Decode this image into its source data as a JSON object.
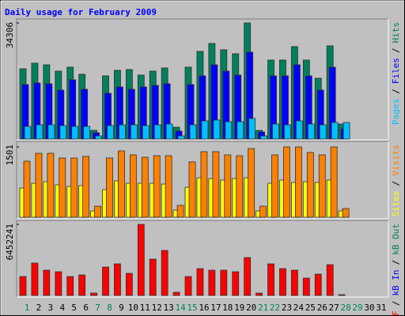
{
  "title": "Daily usage for February 2009",
  "legend_separator": "/",
  "chart_data": [
    {
      "type": "bar",
      "ylim": [
        0,
        34306
      ],
      "yticks": [
        34306
      ],
      "series": [
        {
          "name": "Pages",
          "color": "#00c0ff",
          "values": [
            3734,
            4201,
            4201,
            3967,
            3734,
            3734,
            933,
            3967,
            4201,
            4201,
            3967,
            4201,
            4434,
            933,
            4201,
            5368,
            5601,
            5135,
            5135,
            6068,
            933,
            4434,
            4201,
            5368,
            4434,
            4201,
            4901,
            4901,
            null,
            null,
            null
          ]
        },
        {
          "name": "Files",
          "color": "#0000ff",
          "values": [
            16103,
            16570,
            16336,
            14469,
            17503,
            14703,
            1867,
            13536,
            15403,
            14703,
            15403,
            15870,
            16336,
            2334,
            16103,
            18670,
            21937,
            20070,
            18903,
            25671,
            2100,
            18670,
            18670,
            21937,
            18670,
            14469,
            21237,
            3034,
            null,
            null,
            null
          ]
        },
        {
          "name": "Hits",
          "color": "#00805c",
          "values": [
            20770,
            22404,
            21937,
            20070,
            21237,
            19137,
            2567,
            18670,
            20304,
            20537,
            18903,
            20070,
            21004,
            3501,
            21237,
            25905,
            28238,
            26371,
            25204,
            34306,
            2567,
            23337,
            23337,
            27305,
            23337,
            17970,
            27538,
            4434,
            null,
            null,
            null
          ]
        }
      ]
    },
    {
      "type": "bar",
      "ylim": [
        0,
        1501
      ],
      "yticks": [
        1501
      ],
      "series": [
        {
          "name": "Sites",
          "color": "#ffff00",
          "values": [
            624,
            725,
            759,
            691,
            658,
            675,
            135,
            590,
            776,
            725,
            725,
            725,
            708,
            152,
            641,
            843,
            826,
            793,
            826,
            843,
            135,
            725,
            793,
            742,
            759,
            742,
            793,
            135,
            null,
            null,
            null
          ]
        },
        {
          "name": "Visits",
          "color": "#ff8000",
          "values": [
            1197,
            1366,
            1366,
            1265,
            1265,
            1299,
            236,
            1265,
            1417,
            1332,
            1282,
            1315,
            1315,
            253,
            1181,
            1400,
            1400,
            1332,
            1315,
            1467,
            236,
            1332,
            1501,
            1501,
            1383,
            1332,
            1501,
            186,
            null,
            null,
            null
          ]
        }
      ]
    },
    {
      "type": "bar",
      "ylim": [
        0,
        6452241
      ],
      "yticks": [
        6452241
      ],
      "categories": [
        1,
        2,
        3,
        4,
        5,
        6,
        7,
        8,
        9,
        10,
        11,
        12,
        13,
        14,
        15,
        16,
        17,
        18,
        19,
        20,
        21,
        22,
        23,
        24,
        25,
        26,
        27,
        28,
        29,
        30,
        31
      ],
      "category_colors": [
        "#00805c",
        "#000000",
        "#000000",
        "#000000",
        "#000000",
        "#000000",
        "#00805c",
        "#00805c",
        "#000000",
        "#000000",
        "#000000",
        "#000000",
        "#000000",
        "#00805c",
        "#00805c",
        "#000000",
        "#000000",
        "#000000",
        "#000000",
        "#000000",
        "#00805c",
        "#00805c",
        "#000000",
        "#000000",
        "#000000",
        "#000000",
        "#000000",
        "#00805c",
        "#00805c",
        "#000000",
        "#000000"
      ],
      "series": [
        {
          "name": "kB F",
          "color": "#ff0000",
          "values": [
            1720598,
            2939354,
            2294130,
            2150747,
            1720598,
            1863981,
            215075,
            2580896,
            2867663,
            2007364,
            6452241,
            3297812,
            4086419,
            286766,
            1720598,
            2437513,
            2294130,
            2294130,
            2150747,
            3441195,
            215075,
            2867663,
            2437513,
            2294130,
            1577215,
            1935672,
            2795971,
            71692,
            null,
            null,
            null
          ]
        },
        {
          "name": "kB In",
          "color": "#0000ff"
        },
        {
          "name": "kB Out",
          "color": "#00805c"
        }
      ]
    }
  ]
}
